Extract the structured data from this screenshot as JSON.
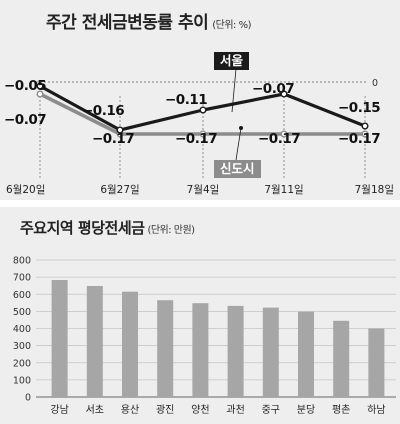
{
  "chart_data": [
    {
      "type": "line",
      "title": "주간 전세금변동률 추이",
      "unit": "(단위: %)",
      "x": [
        "6월20일",
        "6월27일",
        "7월4일",
        "7월11일",
        "7월18일"
      ],
      "series": [
        {
          "name": "서울",
          "values": [
            -0.05,
            -0.16,
            -0.11,
            -0.07,
            -0.15
          ],
          "labels": [
            "−0.05",
            "−0.16",
            "−0.11",
            "−0.07",
            "−0.15"
          ],
          "color": "#1a1a1a"
        },
        {
          "name": "신도시",
          "values": [
            -0.07,
            -0.17,
            -0.17,
            -0.17,
            -0.17
          ],
          "labels": [
            "−0.07",
            "−0.17",
            "−0.17",
            "−0.17",
            "−0.17"
          ],
          "color": "#8c8c8c"
        }
      ],
      "zero_label": "0",
      "ylim": [
        -0.19,
        0.0
      ],
      "grid": false
    },
    {
      "type": "bar",
      "title": "주요지역 평당전세금",
      "unit": "(단위: 만원)",
      "categories": [
        "강남",
        "서초",
        "용산",
        "광진",
        "양천",
        "과천",
        "중구",
        "분당",
        "평촌",
        "하남"
      ],
      "values": [
        683,
        648,
        615,
        565,
        548,
        532,
        522,
        498,
        445,
        400
      ],
      "yticks": [
        0,
        100,
        200,
        300,
        400,
        500,
        600,
        700,
        800
      ],
      "ylim": [
        0,
        800
      ],
      "grid": true,
      "bar_color": "#a6a6a6"
    }
  ]
}
